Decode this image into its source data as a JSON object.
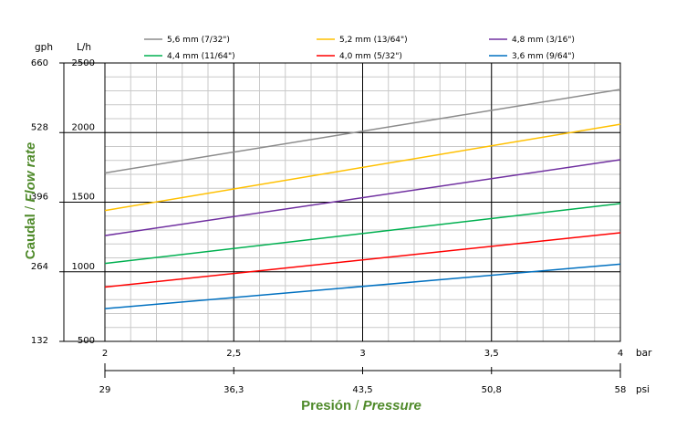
{
  "chart_data": {
    "type": "line",
    "x": [
      2,
      4
    ],
    "xlabel_es": "Presión",
    "xlabel_sep": " / ",
    "xlabel_en": "Pressure",
    "ylabel_es": "Caudal",
    "ylabel_sep": " / ",
    "ylabel_en": "Flow rate",
    "x_unit": "bar",
    "x2_unit": "psi",
    "y_unit": "L/h",
    "y2_unit": "gph",
    "xlim": [
      2,
      4
    ],
    "ylim": [
      500,
      2500
    ],
    "x_ticks": [
      {
        "value": 2,
        "label": "2"
      },
      {
        "value": 2.5,
        "label": "2,5"
      },
      {
        "value": 3,
        "label": "3"
      },
      {
        "value": 3.5,
        "label": "3,5"
      },
      {
        "value": 4,
        "label": "4"
      }
    ],
    "x2_ticks": [
      {
        "value": 2,
        "label": "29"
      },
      {
        "value": 2.5,
        "label": "36,3"
      },
      {
        "value": 3,
        "label": "43,5"
      },
      {
        "value": 3.5,
        "label": "50,8"
      },
      {
        "value": 4,
        "label": "58"
      }
    ],
    "y_ticks": [
      {
        "value": 500,
        "label": "500"
      },
      {
        "value": 1000,
        "label": "1000"
      },
      {
        "value": 1500,
        "label": "1500"
      },
      {
        "value": 2000,
        "label": "2000"
      },
      {
        "value": 2500,
        "label": "2500"
      }
    ],
    "y2_ticks": [
      {
        "value": 500,
        "label": "132"
      },
      {
        "value": 1000,
        "label": "264"
      },
      {
        "value": 1500,
        "label": "396"
      },
      {
        "value": 2000,
        "label": "528"
      },
      {
        "value": 2500,
        "label": "660"
      }
    ],
    "grid": true,
    "grid_minor_x": 0.1,
    "grid_minor_y": 100,
    "legend_position": "top",
    "series": [
      {
        "name": "5,6 mm (7/32\")",
        "color": "#8c8c8c",
        "values": [
          1710,
          2310
        ]
      },
      {
        "name": "5,2 mm (13/64\")",
        "color": "#ffc000",
        "values": [
          1440,
          2060
        ]
      },
      {
        "name": "4,8 mm (3/16\")",
        "color": "#7030a0",
        "values": [
          1260,
          1805
        ]
      },
      {
        "name": "4,4 mm (11/64\")",
        "color": "#00b050",
        "values": [
          1060,
          1490
        ]
      },
      {
        "name": "4,0 mm (5/32\")",
        "color": "#ff0000",
        "values": [
          890,
          1280
        ]
      },
      {
        "name": "3,6 mm (9/64\")",
        "color": "#0070c0",
        "values": [
          735,
          1055
        ]
      }
    ]
  }
}
